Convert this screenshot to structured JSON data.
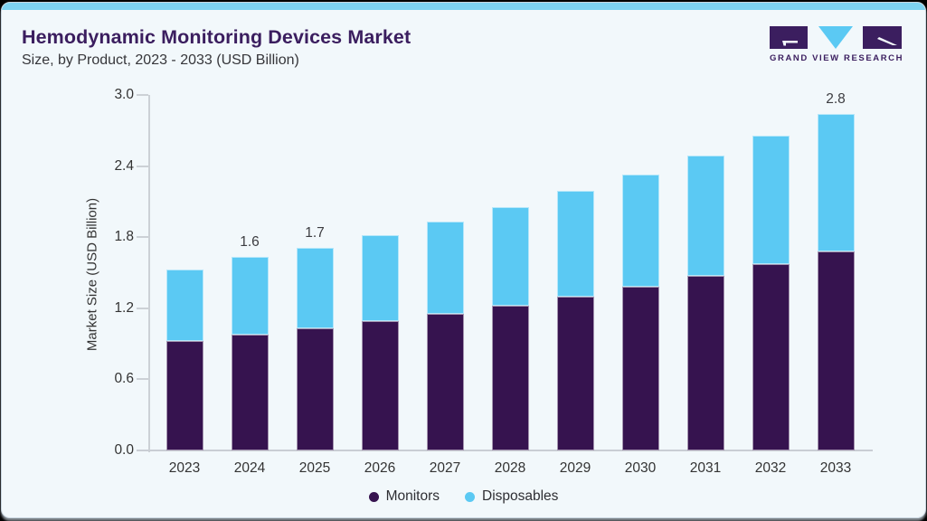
{
  "header": {
    "title": "Hemodynamic Monitoring Devices Market",
    "subtitle": "Size, by Product, 2023 - 2033 (USD Billion)"
  },
  "logo": {
    "text": "GRAND VIEW RESEARCH",
    "purple": "#3b1e5f",
    "blue": "#5bc9f3"
  },
  "chart_data": {
    "type": "bar",
    "stacked": true,
    "title": "Hemodynamic Monitoring Devices Market",
    "subtitle": "Size, by Product, 2023 - 2033 (USD Billion)",
    "xlabel": "",
    "ylabel": "Market Size (USD Billion)",
    "ylim": [
      0.0,
      3.0
    ],
    "yticks": [
      "0.0",
      "0.6",
      "1.2",
      "1.8",
      "2.4",
      "3.0"
    ],
    "grid": false,
    "legend_position": "bottom",
    "categories": [
      "2023",
      "2024",
      "2025",
      "2026",
      "2027",
      "2028",
      "2029",
      "2030",
      "2031",
      "2032",
      "2033"
    ],
    "series": [
      {
        "name": "Monitors",
        "color": "#36134f",
        "values": [
          0.92,
          0.98,
          1.03,
          1.09,
          1.15,
          1.22,
          1.3,
          1.38,
          1.47,
          1.57,
          1.68
        ]
      },
      {
        "name": "Disposables",
        "color": "#5bc9f3",
        "values": [
          0.61,
          0.65,
          0.68,
          0.73,
          0.78,
          0.83,
          0.89,
          0.95,
          1.02,
          1.09,
          1.16
        ]
      }
    ],
    "totals": [
      1.53,
      1.63,
      1.71,
      1.82,
      1.93,
      2.05,
      2.19,
      2.33,
      2.49,
      2.66,
      2.84
    ],
    "point_labels": [
      "",
      "1.6",
      "1.7",
      "",
      "",
      "",
      "",
      "",
      "",
      "",
      "2.8"
    ]
  },
  "colors": {
    "card_bg": "#f2f8fb",
    "top_bar": "#7ed3f2",
    "title": "#3b1e5f",
    "subtitle": "#36363a",
    "axis_text": "#333333",
    "axis_line": "#ccd1d6",
    "monitors": "#36134f",
    "disposables": "#5bc9f3"
  }
}
